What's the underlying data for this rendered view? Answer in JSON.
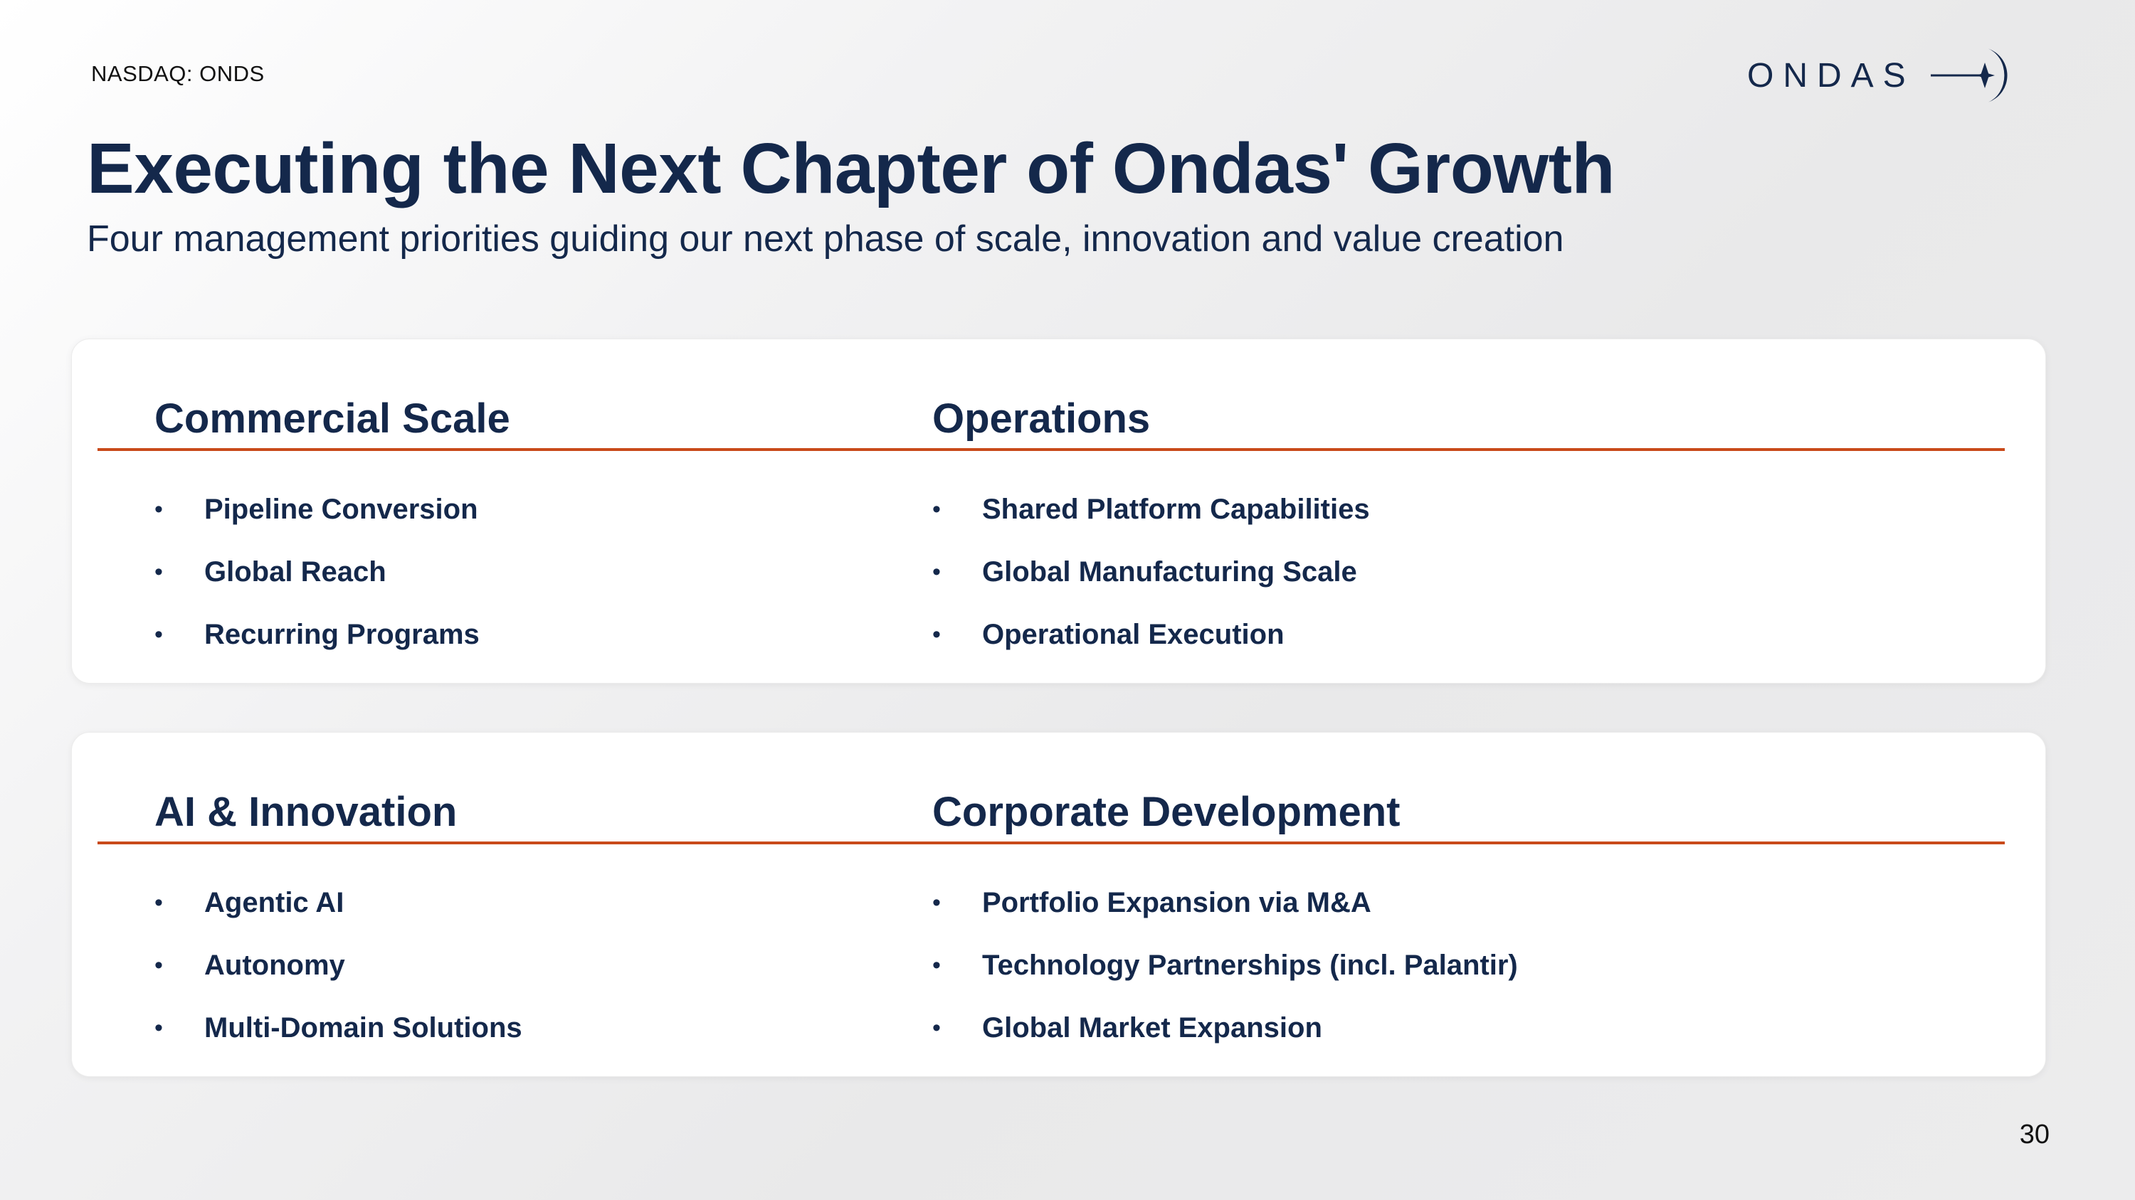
{
  "header": {
    "ticker": "NASDAQ: ONDS",
    "logo_text": "ONDAS",
    "title": "Executing the Next Chapter of Ondas' Growth",
    "subtitle": "Four management priorities guiding our next phase of scale, innovation and value creation"
  },
  "colors": {
    "navy": "#14284b",
    "accent_rule": "#c94a1a"
  },
  "cards": [
    {
      "left": {
        "heading": "Commercial Scale",
        "items": [
          "Pipeline Conversion",
          "Global Reach",
          "Recurring Programs"
        ]
      },
      "right": {
        "heading": "Operations",
        "items": [
          "Shared Platform Capabilities",
          "Global Manufacturing Scale",
          "Operational Execution"
        ]
      }
    },
    {
      "left": {
        "heading": "AI & Innovation",
        "items": [
          "Agentic AI",
          "Autonomy",
          "Multi-Domain Solutions"
        ]
      },
      "right": {
        "heading": "Corporate Development",
        "items": [
          "Portfolio Expansion via M&A",
          "Technology Partnerships (incl. Palantir)",
          "Global Market Expansion"
        ]
      }
    }
  ],
  "bullet_glyph": "•",
  "footer": {
    "page_number": "30"
  }
}
